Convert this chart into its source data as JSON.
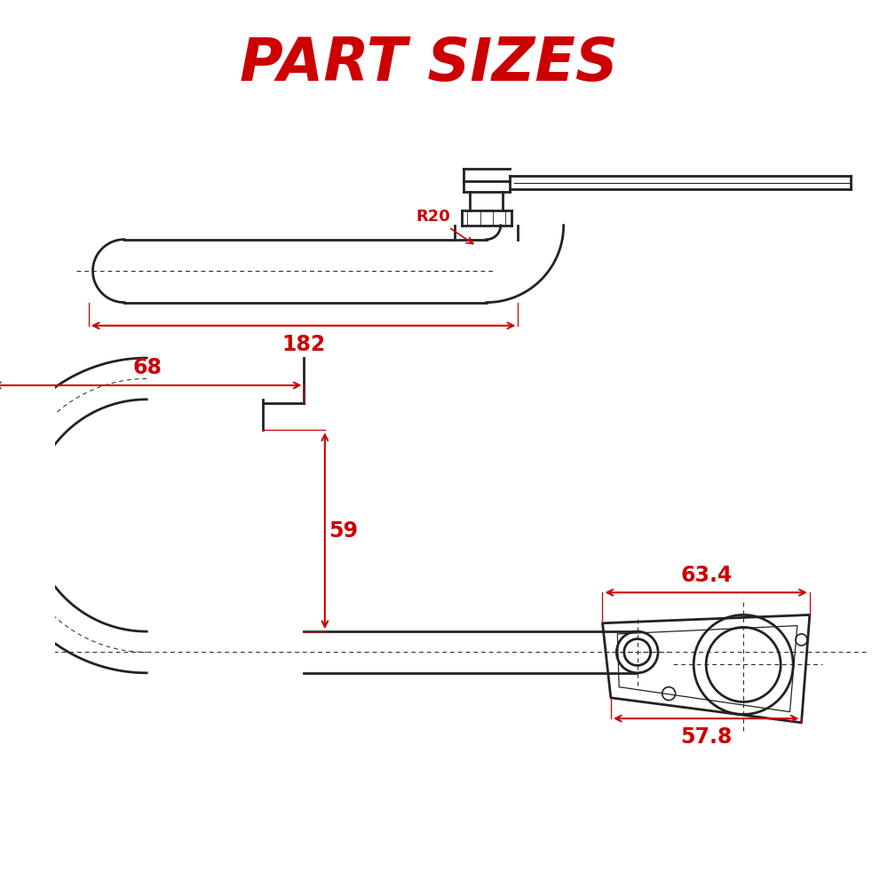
{
  "title": "PART SIZES",
  "title_color": "#CC0000",
  "title_fontsize": 48,
  "bg_color": "#FFFFFF",
  "line_color": "#222222",
  "dim_color": "#CC0000",
  "dim_fontsize": 15,
  "dimensions": {
    "part1_length": "182",
    "part1_radius": "R20",
    "part2_width": "68",
    "part2_height": "59",
    "part3_width": "63.4",
    "part3_height": "57.8"
  }
}
